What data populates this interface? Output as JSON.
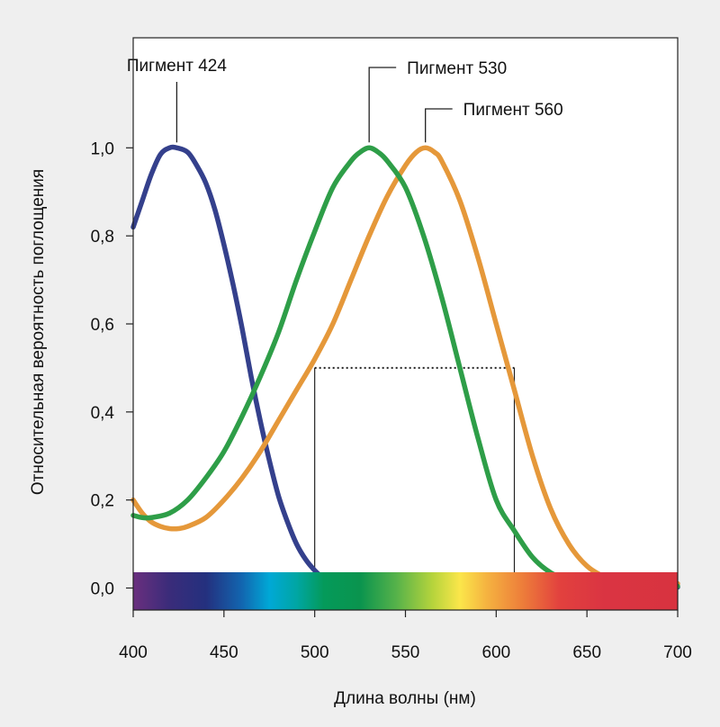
{
  "chart_data": {
    "type": "line",
    "xlabel": "Длина волны (нм)",
    "ylabel": "Относительная вероятность поглощения",
    "xlim": [
      400,
      700
    ],
    "ylim": [
      -0.05,
      1.25
    ],
    "x_ticks": [
      400,
      450,
      500,
      550,
      600,
      650,
      700
    ],
    "x_tick_labels": [
      "400",
      "450",
      "500",
      "550",
      "600",
      "650",
      "700"
    ],
    "y_ticks": [
      0.0,
      0.2,
      0.4,
      0.6,
      0.8,
      1.0
    ],
    "y_tick_labels": [
      "0,0",
      "0,2",
      "0,4",
      "0,6",
      "0,8",
      "1,0"
    ],
    "grid": false,
    "legend": "inline-labels",
    "series": [
      {
        "name": "Пигмент 424",
        "color": "#34408c",
        "peak": [
          424,
          1.0
        ],
        "x": [
          400,
          405,
          410,
          415,
          420,
          424,
          430,
          435,
          440,
          445,
          450,
          455,
          460,
          465,
          470,
          475,
          480,
          485,
          490,
          495,
          500,
          505,
          510,
          520,
          540,
          560,
          580,
          600,
          620,
          640,
          660,
          680,
          700
        ],
        "y": [
          0.82,
          0.88,
          0.94,
          0.985,
          1.0,
          1.0,
          0.99,
          0.96,
          0.92,
          0.86,
          0.78,
          0.69,
          0.59,
          0.48,
          0.38,
          0.29,
          0.21,
          0.15,
          0.1,
          0.065,
          0.04,
          0.022,
          0.013,
          0.006,
          0.002,
          -0.002,
          -0.004,
          -0.004,
          -0.004,
          -0.003,
          -0.002,
          0.0,
          0.002
        ]
      },
      {
        "name": "Пигмент 530",
        "color": "#2e9e48",
        "peak": [
          530,
          1.0
        ],
        "x": [
          400,
          405,
          410,
          420,
          430,
          440,
          450,
          460,
          470,
          480,
          490,
          500,
          510,
          520,
          525,
          530,
          535,
          540,
          550,
          560,
          570,
          580,
          590,
          600,
          610,
          620,
          630,
          640,
          650,
          660,
          680,
          700
        ],
        "y": [
          0.165,
          0.16,
          0.16,
          0.17,
          0.2,
          0.25,
          0.31,
          0.39,
          0.48,
          0.58,
          0.7,
          0.81,
          0.91,
          0.97,
          0.99,
          1.0,
          0.99,
          0.97,
          0.91,
          0.8,
          0.66,
          0.5,
          0.34,
          0.2,
          0.13,
          0.07,
          0.035,
          0.018,
          0.01,
          0.006,
          0.004,
          0.004
        ]
      },
      {
        "name": "Пигмент 560",
        "color": "#e5983a",
        "peak": [
          561,
          1.0
        ],
        "x": [
          400,
          405,
          410,
          415,
          420,
          425,
          430,
          440,
          450,
          460,
          470,
          480,
          490,
          500,
          510,
          520,
          530,
          540,
          550,
          556,
          561,
          566,
          570,
          580,
          590,
          600,
          610,
          620,
          630,
          640,
          650,
          660,
          670,
          680,
          690,
          700
        ],
        "y": [
          0.2,
          0.17,
          0.15,
          0.14,
          0.135,
          0.135,
          0.14,
          0.16,
          0.2,
          0.25,
          0.31,
          0.38,
          0.45,
          0.52,
          0.6,
          0.7,
          0.8,
          0.89,
          0.96,
          0.99,
          1.0,
          0.99,
          0.97,
          0.88,
          0.75,
          0.6,
          0.45,
          0.3,
          0.18,
          0.1,
          0.05,
          0.025,
          0.015,
          0.01,
          0.01,
          0.01
        ]
      }
    ],
    "reference": {
      "x_left": 500,
      "x_right": 610,
      "y_level": 0.5
    },
    "spectrum_bar": {
      "stops": [
        {
          "x": 400,
          "color": "#6a2f7e"
        },
        {
          "x": 420,
          "color": "#3a2c7a"
        },
        {
          "x": 440,
          "color": "#24307e"
        },
        {
          "x": 460,
          "color": "#1266b0"
        },
        {
          "x": 475,
          "color": "#00a8d6"
        },
        {
          "x": 490,
          "color": "#00a6a4"
        },
        {
          "x": 505,
          "color": "#049a5a"
        },
        {
          "x": 525,
          "color": "#0a944e"
        },
        {
          "x": 545,
          "color": "#56b24a"
        },
        {
          "x": 565,
          "color": "#b6d43c"
        },
        {
          "x": 580,
          "color": "#fbe64a"
        },
        {
          "x": 595,
          "color": "#f5b240"
        },
        {
          "x": 615,
          "color": "#ed7c3a"
        },
        {
          "x": 635,
          "color": "#e2413e"
        },
        {
          "x": 660,
          "color": "#da3442"
        },
        {
          "x": 700,
          "color": "#d8333f"
        }
      ]
    }
  }
}
